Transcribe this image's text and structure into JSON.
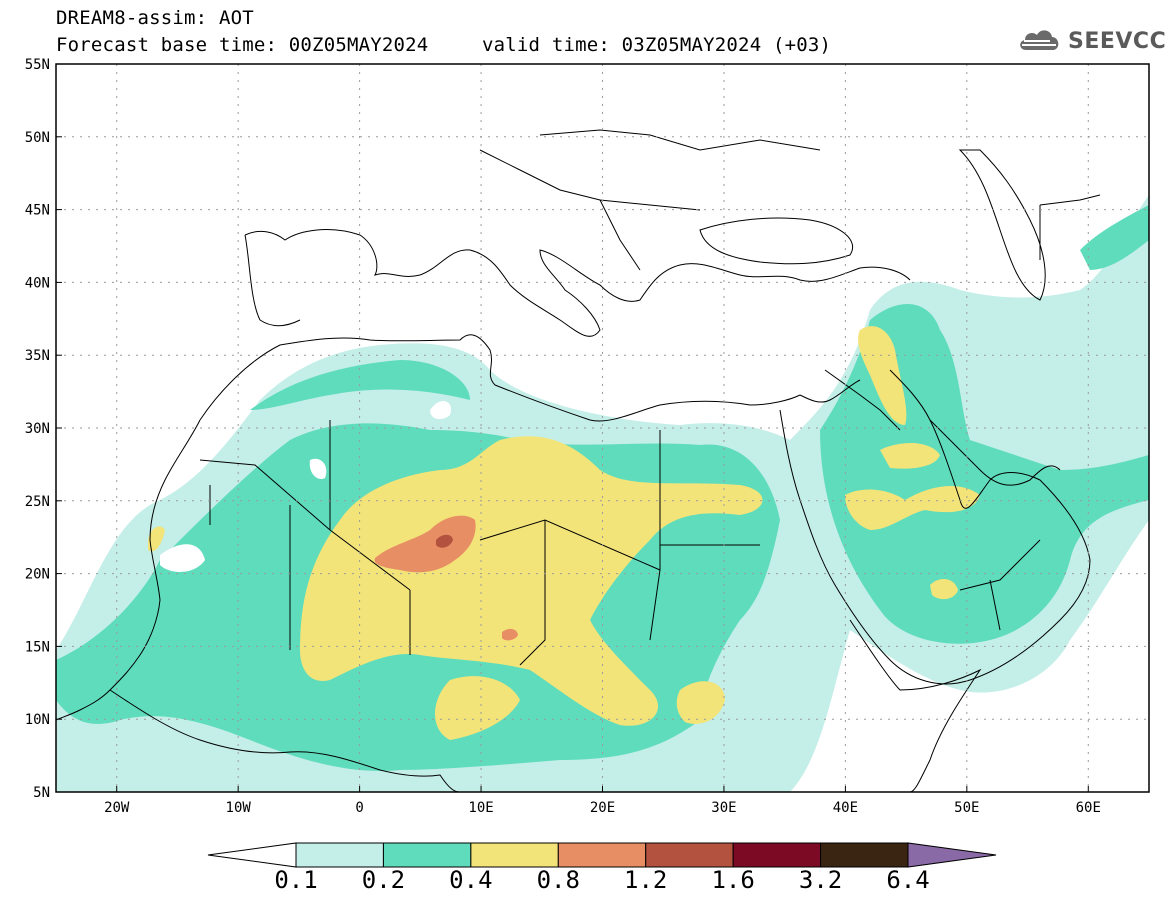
{
  "header": {
    "line1": "DREAM8-assim: AOT",
    "line2": "Forecast base time: 00Z05MAY2024",
    "line3": "valid time: 03Z05MAY2024 (+03)"
  },
  "logo": {
    "text": "SEEVCCC",
    "icon": "cloud-icon"
  },
  "map": {
    "lat_labels": [
      "55N",
      "50N",
      "45N",
      "40N",
      "35N",
      "30N",
      "25N",
      "20N",
      "15N",
      "10N",
      "5N"
    ],
    "lon_labels": [
      "20W",
      "10W",
      "0",
      "10E",
      "20E",
      "30E",
      "40E",
      "50E",
      "60E"
    ],
    "lon_range": [
      -25,
      65
    ],
    "lat_range": [
      5,
      55
    ],
    "grid": "dotted"
  },
  "colorbar": {
    "labels": [
      "0.1",
      "0.2",
      "0.4",
      "0.8",
      "1.2",
      "1.6",
      "3.2",
      "6.4"
    ],
    "colors": [
      "#c4eee8",
      "#5fdcbc",
      "#f3e47a",
      "#e88e64",
      "#b3523f",
      "#7d0a25",
      "#3a2412",
      "#8a6aa6"
    ]
  }
}
